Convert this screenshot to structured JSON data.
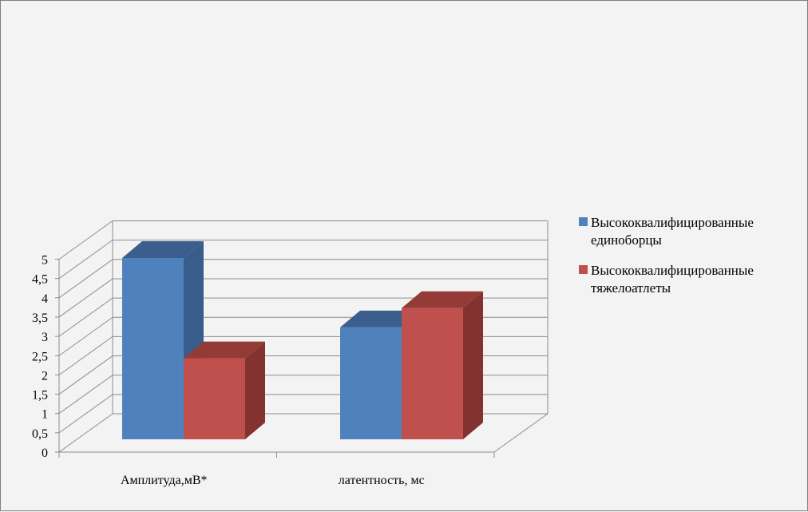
{
  "chart_data": {
    "type": "bar",
    "categories": [
      "Амплитуда,мВ*",
      "латентность, мс"
    ],
    "series": [
      {
        "name": "Высококвалифицированные единоборцы",
        "values": [
          4.7,
          2.9
        ],
        "color": "#4f81bd",
        "side_color": "#385d8a",
        "top_color": "#3b5e8c"
      },
      {
        "name": "Высококвалифицированные тяжелоатлеты",
        "values": [
          2.1,
          3.4
        ],
        "color": "#c0504d",
        "side_color": "#833230",
        "top_color": "#943a37"
      }
    ],
    "yticks": [
      "0",
      "0,5",
      "1",
      "1,5",
      "2",
      "2,5",
      "3",
      "3,5",
      "4",
      "4,5",
      "5"
    ],
    "ylim": [
      0,
      5
    ],
    "grid": true,
    "legend_position": "right",
    "legend_lines": [
      [
        "Высококвалифицированные",
        "единоборцы"
      ],
      [
        "Высококвалифицированные",
        "тяжелоатлеты"
      ]
    ]
  }
}
